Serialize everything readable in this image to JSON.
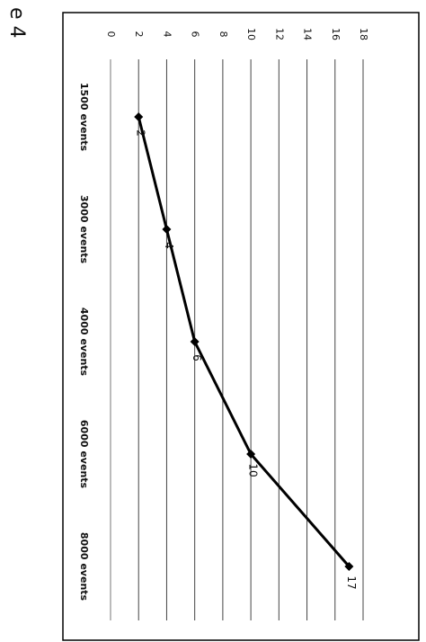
{
  "page_label": "e 4",
  "chart_data": {
    "type": "line",
    "orientation": "rotated-90-clockwise",
    "categories": [
      "1500 events",
      "3000 events",
      "4000 events",
      "6000 events",
      "8000 events"
    ],
    "series": [
      {
        "values": [
          2,
          4,
          6,
          10,
          17
        ]
      }
    ],
    "data_labels": [
      "2",
      "4",
      "6",
      "10",
      "17"
    ],
    "yticks": [
      0,
      2,
      4,
      6,
      8,
      10,
      12,
      14,
      16,
      18
    ],
    "ylim": [
      0,
      18
    ],
    "grid": true,
    "title": "",
    "xlabel": "",
    "ylabel": "",
    "line_color": "#000000",
    "marker": "diamond"
  }
}
